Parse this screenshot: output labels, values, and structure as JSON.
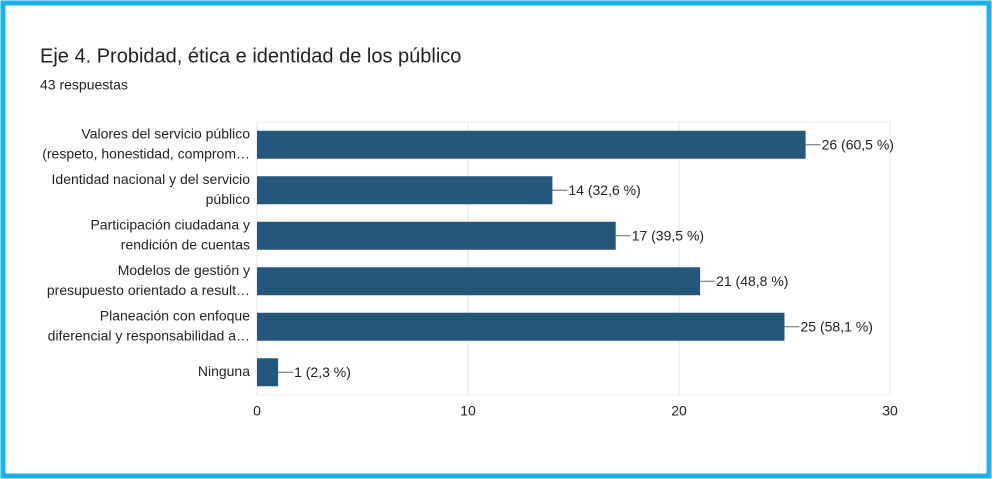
{
  "chart_data": {
    "type": "bar",
    "orientation": "horizontal",
    "title": "Eje 4. Probidad, ética e identidad de los público",
    "subtitle": "43 respuestas",
    "categories": [
      [
        "Valores del servicio público",
        "(respeto, honestidad, comprom…"
      ],
      [
        "Identidad nacional y del servicio",
        "público"
      ],
      [
        "Participación ciudadana y",
        "rendición de cuentas"
      ],
      [
        "Modelos de gestión y",
        "presupuesto orientado a result…"
      ],
      [
        "Planeación con enfoque",
        "diferencial y responsabilidad a…"
      ],
      [
        "Ninguna"
      ]
    ],
    "values": [
      26,
      14,
      17,
      21,
      25,
      1
    ],
    "value_labels": [
      "26 (60,5 %)",
      "14 (32,6 %)",
      "17 (39,5 %)",
      "21 (48,8 %)",
      "25 (58,1 %)",
      "1 (2,3 %)"
    ],
    "color": "#24577a",
    "xlim": [
      0,
      30
    ],
    "xticks": [
      0,
      10,
      20,
      30
    ],
    "grid": true
  }
}
